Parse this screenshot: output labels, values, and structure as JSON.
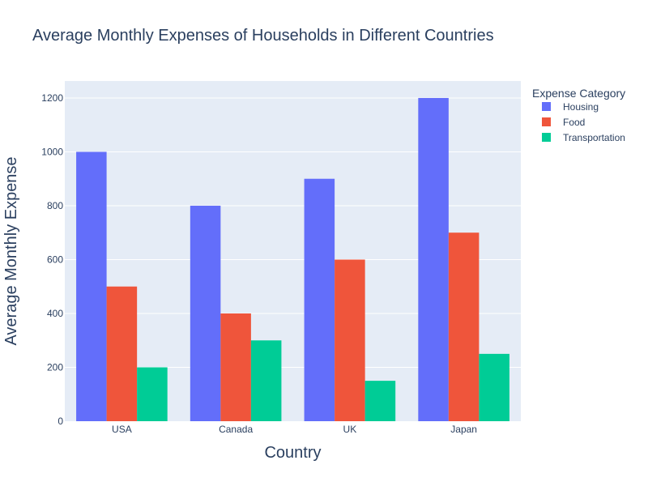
{
  "chart_data": {
    "type": "bar",
    "title": "Average Monthly Expenses of Households in Different Countries",
    "xlabel": "Country",
    "ylabel": "Average Monthly Expense",
    "categories": [
      "USA",
      "Canada",
      "UK",
      "Japan"
    ],
    "series": [
      {
        "name": "Housing",
        "color": "#636efa",
        "values": [
          1000,
          800,
          900,
          1200
        ]
      },
      {
        "name": "Food",
        "color": "#ef553b",
        "values": [
          500,
          400,
          600,
          700
        ]
      },
      {
        "name": "Transportation",
        "color": "#00cc96",
        "values": [
          200,
          300,
          150,
          250
        ]
      }
    ],
    "ylim": [
      0,
      1263
    ],
    "yticks": [
      0,
      200,
      400,
      600,
      800,
      1000,
      1200
    ],
    "grid": true,
    "legend": {
      "title": "Expense Category",
      "position": "top-right"
    }
  },
  "style": {
    "plot_bg": "#e5ecf6",
    "grid_color": "#ffffff",
    "text_color": "#2a3f5f"
  }
}
